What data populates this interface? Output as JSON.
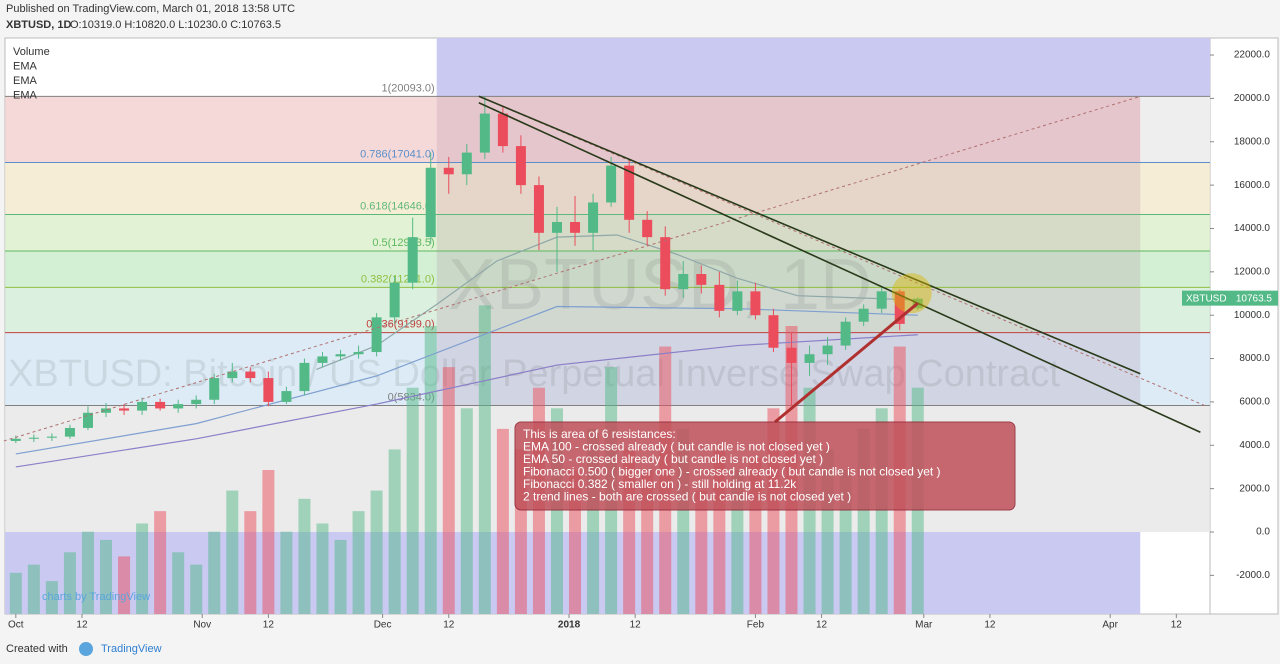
{
  "header": {
    "published": "Published on TradingView.com, March 01, 2018 13:58 UTC",
    "ohlc": "O:10319.0 H:10820.0 L:10230.0 C:10763.5"
  },
  "footer": {
    "created": "Created with",
    "brand": "TradingView"
  },
  "chart_data": {
    "type": "candlestick",
    "title": "XBTUSD, 1D",
    "watermark": {
      "big": "XBTUSD, 1D",
      "long": "XBTUSD: Bitcoin / US Dollar Perpetual Inverse Swap Contract"
    },
    "brand_mark": "charts by TradingView",
    "legend": [
      "Volume",
      "EMA",
      "EMA",
      "EMA"
    ],
    "price_label": {
      "symbol": "XBTUSD"
    },
    "up_color": "#53b987",
    "down_color": "#eb4d5c",
    "x": [
      0,
      3,
      6,
      9,
      12,
      15,
      18,
      21,
      24,
      27,
      30,
      33,
      36,
      39,
      42,
      45,
      48,
      51,
      54,
      57,
      60,
      63,
      66,
      69,
      72,
      75,
      78,
      81,
      84,
      87,
      90,
      93,
      96,
      99,
      102,
      105,
      108,
      111,
      114,
      117,
      120,
      123,
      126,
      129,
      132,
      135,
      138,
      141,
      144,
      147,
      150
    ],
    "open": [
      4200,
      4300,
      4350,
      4400,
      4800,
      5500,
      5700,
      5600,
      6000,
      5700,
      5900,
      6100,
      7100,
      7400,
      7100,
      6000,
      6500,
      7800,
      8100,
      8200,
      8300,
      9900,
      11500,
      13600,
      16800,
      16500,
      17500,
      19300,
      17800,
      16000,
      13800,
      14300,
      13800,
      15200,
      16900,
      14400,
      13600,
      11200,
      11900,
      11400,
      10200,
      11100,
      10000,
      8500,
      7800,
      8200,
      8600,
      9700,
      10300,
      11100,
      10319
    ],
    "high": [
      4450,
      4500,
      4550,
      4950,
      5800,
      5950,
      5900,
      6200,
      6150,
      6100,
      6300,
      7300,
      7800,
      7600,
      7400,
      6700,
      8000,
      8300,
      8400,
      8600,
      10100,
      11800,
      14500,
      17500,
      17300,
      17900,
      20093,
      19600,
      18300,
      16400,
      15000,
      15500,
      15600,
      17300,
      17200,
      14800,
      14100,
      12500,
      12300,
      12000,
      11600,
      11500,
      10300,
      9200,
      8600,
      9000,
      9900,
      10500,
      11300,
      11200,
      10820
    ],
    "low": [
      4100,
      4150,
      4200,
      4300,
      4700,
      5300,
      5400,
      5400,
      5600,
      5500,
      5700,
      5900,
      6900,
      6900,
      5800,
      5900,
      6300,
      7600,
      7900,
      8000,
      8100,
      9600,
      11200,
      13300,
      15600,
      16000,
      17200,
      17500,
      15600,
      13000,
      12000,
      13200,
      13000,
      15000,
      13800,
      13200,
      10900,
      10800,
      11000,
      9900,
      10000,
      9800,
      8300,
      5834,
      7200,
      7700,
      8400,
      9500,
      10100,
      9300,
      10230
    ],
    "close": [
      4300,
      4350,
      4400,
      4800,
      5500,
      5700,
      5600,
      6000,
      5700,
      5900,
      6100,
      7100,
      7400,
      7100,
      6000,
      6500,
      7800,
      8100,
      8200,
      8300,
      9900,
      11500,
      13600,
      16800,
      16500,
      17500,
      19300,
      17800,
      16000,
      13800,
      14300,
      13800,
      15200,
      16900,
      14400,
      13600,
      11200,
      11900,
      11400,
      10200,
      11100,
      10000,
      8500,
      7800,
      8200,
      8600,
      9700,
      10300,
      11100,
      9600,
      10763.5
    ],
    "volume": [
      10,
      12,
      8,
      15,
      20,
      18,
      14,
      22,
      25,
      15,
      12,
      20,
      30,
      25,
      35,
      20,
      28,
      22,
      18,
      25,
      30,
      40,
      55,
      70,
      60,
      50,
      75,
      45,
      40,
      55,
      50,
      35,
      45,
      60,
      40,
      35,
      65,
      45,
      30,
      40,
      35,
      38,
      50,
      70,
      55,
      40,
      35,
      45,
      50,
      65,
      55
    ],
    "volume_lim": [
      0,
      140
    ],
    "ema": [
      {
        "color": "#8a7fc8",
        "x": [
          0,
          30,
          60,
          90,
          120,
          150
        ],
        "values": [
          3000,
          4300,
          5900,
          7700,
          8600,
          9100
        ]
      },
      {
        "color": "#7f9fd0",
        "x": [
          0,
          30,
          60,
          90,
          120,
          150
        ],
        "values": [
          3600,
          5000,
          7200,
          10400,
          10300,
          10000
        ]
      },
      {
        "color": "#8fa8a8",
        "x": [
          50,
          60,
          70,
          80,
          90,
          100,
          110,
          120,
          130,
          140,
          150
        ],
        "values": [
          7500,
          8600,
          10500,
          12500,
          13600,
          13700,
          12800,
          11700,
          10900,
          10800,
          10700
        ]
      }
    ],
    "fib": {
      "x0": 70,
      "x1": 187,
      "levels": [
        {
          "value": 20093,
          "label": "1(20093.0)",
          "color": "#808080",
          "band": "#f3cfcf"
        },
        {
          "value": 17041,
          "label": "0.786(17041.0)",
          "color": "#5b8fc9",
          "band": "#f2e9cc"
        },
        {
          "value": 14646,
          "label": "0.618(14646.0)",
          "color": "#5fb87a",
          "band": "#d9f0c9"
        },
        {
          "value": 12963.5,
          "label": "0.5(12963.5)",
          "color": "#5fb85f",
          "band": "#c9ecc9"
        },
        {
          "value": 11281,
          "label": "0.382(11281.0)",
          "color": "#8fbf3f",
          "band": "#d2ecd6"
        },
        {
          "value": 9199,
          "label": "0.236(9199.0)",
          "color": "#c04040",
          "band": "#d3e6f2"
        },
        {
          "value": 5834,
          "label": "0(5834.0)",
          "color": "#808080",
          "band": "#e6e6e6"
        }
      ]
    },
    "trendlines": [
      {
        "x": [
          77,
          187
        ],
        "y": [
          20100,
          7300
        ]
      },
      {
        "x": [
          77,
          197
        ],
        "y": [
          19800,
          4600
        ]
      }
    ],
    "dashed": [
      {
        "x": [
          -2,
          187
        ],
        "y": [
          4200,
          20093
        ]
      },
      {
        "x": [
          77,
          198
        ],
        "y": [
          20093,
          5800
        ]
      }
    ],
    "highlight": {
      "x": 150,
      "y": 11200
    },
    "annotation": {
      "lines": [
        "This is area of 6 resistances:",
        "EMA 100 - crossed already ( but candle is not closed yet )",
        "EMA 50 - crossed already ( but candle is not closed yet )",
        "Fibonacci 0.500 ( bigger one ) - crossed already ( but candle is not closed yet )",
        "Fibonacci 0.382 ( smaller on ) - still holding at 11.2k",
        "2 trend lines - both are crossed ( but candle is not closed yet )"
      ]
    },
    "xlim": [
      -1.8,
      198.6
    ],
    "xticks": [
      {
        "value": 0,
        "label": "Oct"
      },
      {
        "value": 11,
        "label": "12"
      },
      {
        "value": 31,
        "label": "Nov"
      },
      {
        "value": 42,
        "label": "12"
      },
      {
        "value": 61,
        "label": "Dec"
      },
      {
        "value": 72,
        "label": "12"
      },
      {
        "value": 92,
        "label": "2018"
      },
      {
        "value": 103,
        "label": "12"
      },
      {
        "value": 123,
        "label": "Feb"
      },
      {
        "value": 134,
        "label": "12"
      },
      {
        "value": 151,
        "label": "Mar"
      },
      {
        "value": 162,
        "label": "12"
      },
      {
        "value": 182,
        "label": "Apr"
      },
      {
        "value": 193,
        "label": "12"
      }
    ],
    "ylim": [
      -3782,
      22786
    ],
    "yticks": [
      {
        "value": -2000,
        "label": "-2000.0"
      },
      {
        "value": 0,
        "label": "0.0"
      },
      {
        "value": 2000,
        "label": "2000.0"
      },
      {
        "value": 4000,
        "label": "4000.0"
      },
      {
        "value": 6000,
        "label": "6000.0"
      },
      {
        "value": 8000,
        "label": "8000.0"
      },
      {
        "value": 10000,
        "label": "10000.0"
      },
      {
        "value": 12000,
        "label": "12000.0"
      },
      {
        "value": 14000,
        "label": "14000.0"
      },
      {
        "value": 16000,
        "label": "16000.0"
      },
      {
        "value": 18000,
        "label": "18000.0"
      },
      {
        "value": 20000,
        "label": "20000.0"
      },
      {
        "value": 22000,
        "label": "22000.0"
      }
    ]
  }
}
